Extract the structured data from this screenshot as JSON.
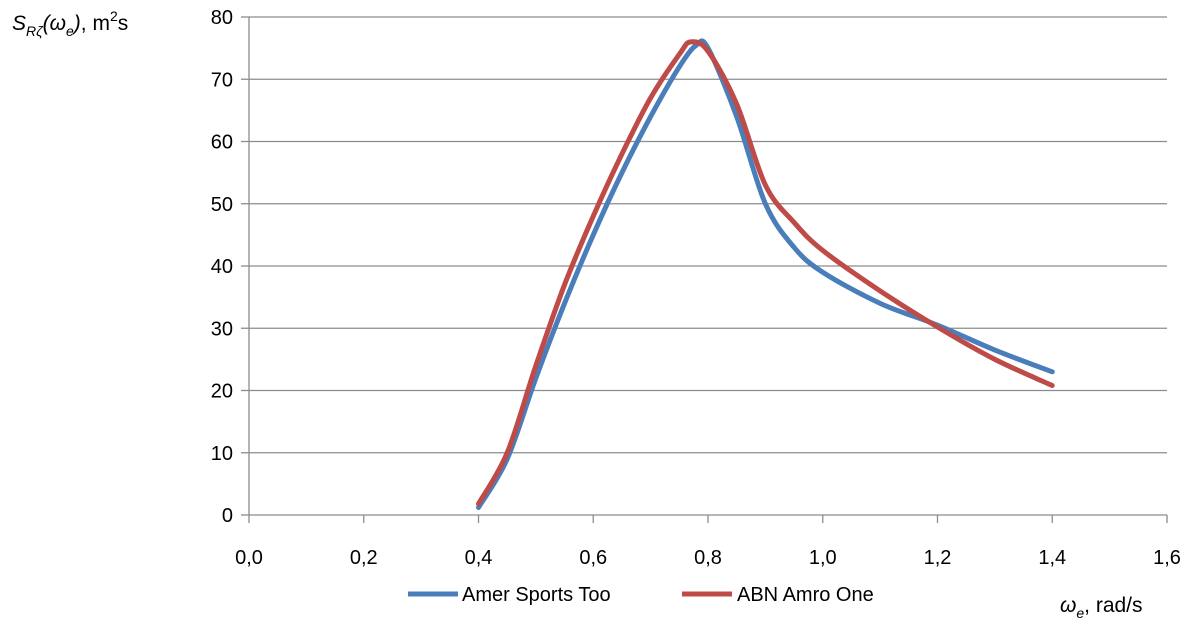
{
  "chart_data": {
    "type": "line",
    "title": "",
    "ylabel": {
      "symbol": "S",
      "sub": "Rζ",
      "paren_open": "(",
      "arg": "ω",
      "arg_sub": "e",
      "paren_close": ")",
      "unit": ", m",
      "unit_sup": "2",
      "unit_tail": "s"
    },
    "xlabel": {
      "symbol": "ω",
      "sub": "e",
      "unit": ", rad/s"
    },
    "xlim": [
      0,
      1.6
    ],
    "ylim": [
      0,
      80
    ],
    "xticks": [
      "0,0",
      "0,2",
      "0,4",
      "0,6",
      "0,8",
      "1,0",
      "1,2",
      "1,4",
      "1,6"
    ],
    "yticks": [
      "0",
      "10",
      "20",
      "30",
      "40",
      "50",
      "60",
      "70",
      "80"
    ],
    "grid": "horizontal",
    "legend_position": "bottom",
    "series": [
      {
        "name": "Amer Sports Too",
        "color": "#4a7ebb",
        "x": [
          0.4,
          0.45,
          0.5,
          0.55,
          0.6,
          0.65,
          0.7,
          0.75,
          0.78,
          0.8,
          0.85,
          0.9,
          0.95,
          1.0,
          1.1,
          1.2,
          1.3,
          1.4
        ],
        "y": [
          1.2,
          9,
          22,
          34,
          45,
          55,
          64,
          72,
          75.5,
          75,
          64,
          50,
          43,
          39,
          34,
          30.5,
          26.5,
          23
        ]
      },
      {
        "name": "ABN Amro One",
        "color": "#be4b48",
        "x": [
          0.4,
          0.45,
          0.5,
          0.55,
          0.6,
          0.65,
          0.7,
          0.75,
          0.77,
          0.8,
          0.85,
          0.9,
          0.95,
          1.0,
          1.1,
          1.2,
          1.3,
          1.4
        ],
        "y": [
          1.8,
          10,
          24,
          37,
          48,
          58,
          67,
          74,
          76,
          74.5,
          66,
          53,
          47,
          42.5,
          36,
          30.2,
          25,
          20.8
        ]
      }
    ]
  }
}
